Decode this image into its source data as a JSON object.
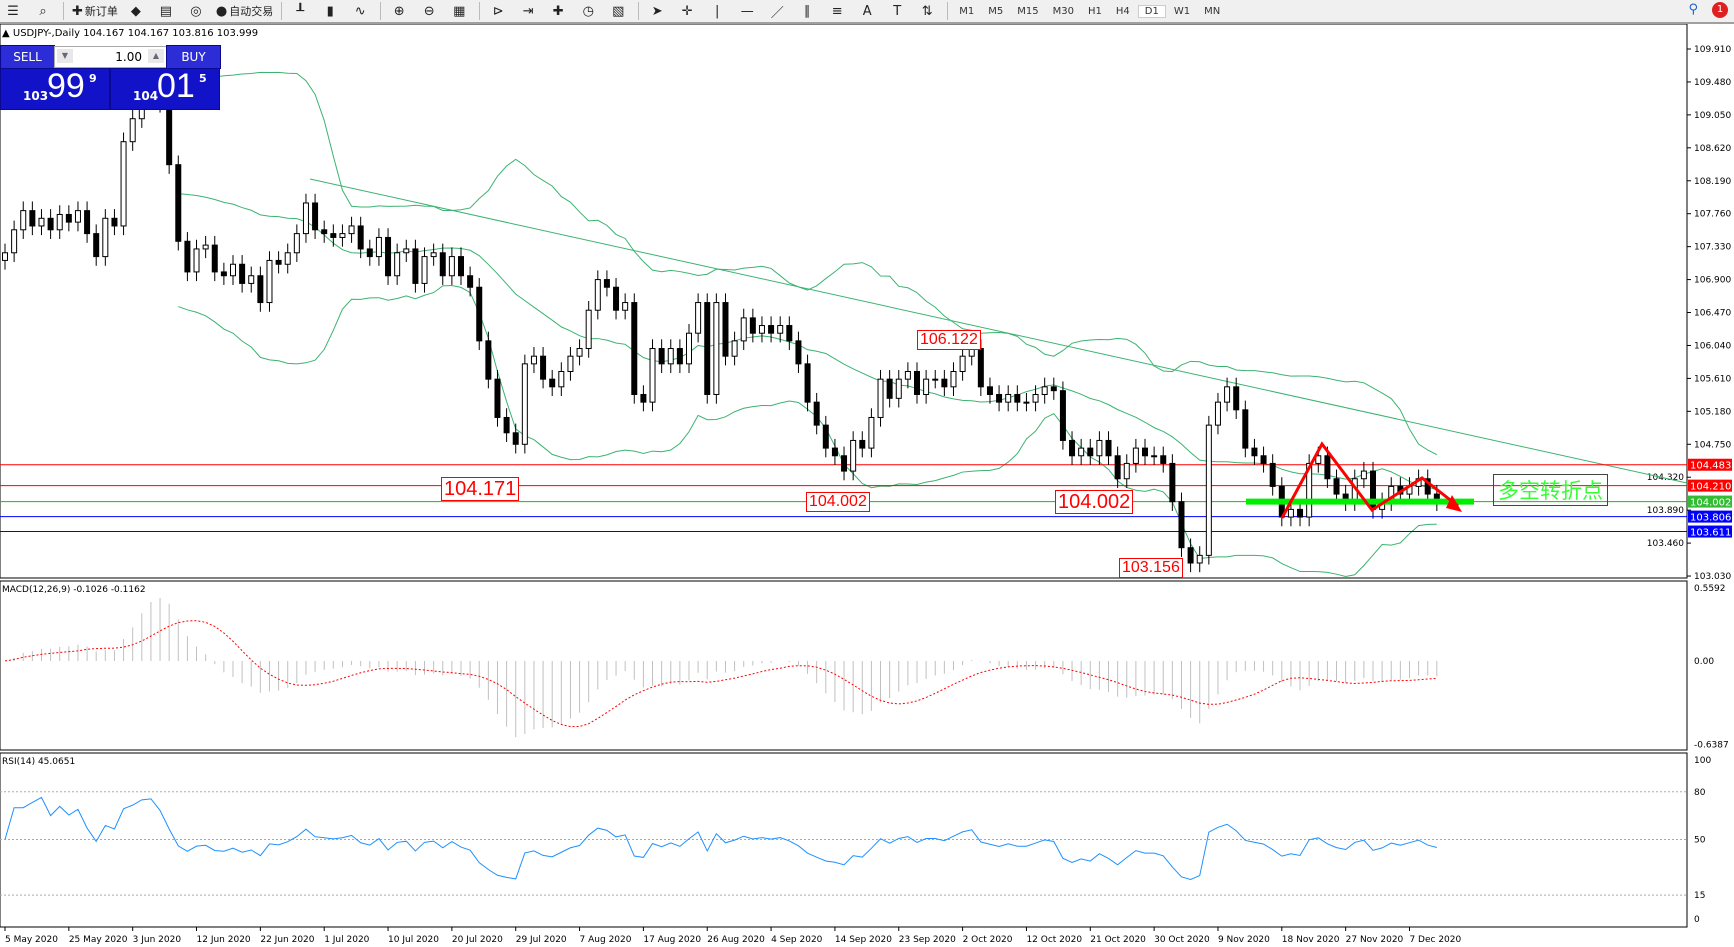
{
  "toolbar": {
    "items": [
      {
        "icon": "list-icon",
        "label": ""
      },
      {
        "icon": "zoom-chart-icon",
        "label": ""
      },
      {
        "icon": "new-order-icon",
        "label": "新订单"
      },
      {
        "icon": "market-watch-icon",
        "label": ""
      },
      {
        "icon": "navigator-icon",
        "label": ""
      },
      {
        "icon": "signal-icon",
        "label": ""
      },
      {
        "icon": "auto-trading-icon",
        "label": "自动交易"
      },
      {
        "icon": "bar-chart-icon",
        "label": ""
      },
      {
        "icon": "candlestick-icon",
        "label": ""
      },
      {
        "icon": "line-chart-icon",
        "label": ""
      },
      {
        "icon": "zoom-in-icon",
        "label": ""
      },
      {
        "icon": "zoom-out-icon",
        "label": ""
      },
      {
        "icon": "tile-windows-icon",
        "label": ""
      },
      {
        "icon": "chart-shift-icon",
        "label": ""
      },
      {
        "icon": "autoscroll-icon",
        "label": ""
      },
      {
        "icon": "indicators-icon",
        "label": ""
      },
      {
        "icon": "periods-icon",
        "label": ""
      },
      {
        "icon": "templates-icon",
        "label": ""
      },
      {
        "icon": "cursor-icon",
        "label": ""
      },
      {
        "icon": "crosshair-icon",
        "label": ""
      },
      {
        "icon": "vertical-line-icon",
        "label": ""
      },
      {
        "icon": "horizontal-line-icon",
        "label": ""
      },
      {
        "icon": "trendline-icon",
        "label": ""
      },
      {
        "icon": "equidistant-channel-icon",
        "label": ""
      },
      {
        "icon": "fibonacci-icon",
        "label": ""
      },
      {
        "icon": "text-icon",
        "label": "A"
      },
      {
        "icon": "text-label-icon",
        "label": "T"
      },
      {
        "icon": "arrows-icon",
        "label": ""
      }
    ],
    "timeframes": [
      "M1",
      "M5",
      "M15",
      "M30",
      "H1",
      "H4",
      "D1",
      "W1",
      "MN"
    ],
    "active_timeframe": "D1",
    "notifications": "1"
  },
  "chart": {
    "title": "USDJPY-,Daily  104.167 104.167 103.816 103.999",
    "trade": {
      "sell_label": "SELL",
      "buy_label": "BUY",
      "lot": "1.00",
      "sell_small": "103",
      "sell_big": "99",
      "sell_pip": "9",
      "buy_small": "104",
      "buy_big": "01",
      "buy_pip": "5"
    },
    "annotations": [
      "106.122",
      "104.171",
      "104.002",
      "104.002",
      "103.156"
    ],
    "note": "多空转折点"
  },
  "colors": {
    "up": "#ffffff",
    "down": "#000000",
    "bands": "#3cb371",
    "trend": "#3cb371",
    "red": "#ff0000",
    "green": "#00ee00",
    "blue": "#0000ff",
    "rsi": "#1e90ff",
    "macd_hist": "#c0c0c0",
    "signal": "#ff0000"
  },
  "chart_data": {
    "type": "candlestick",
    "symbol": "USDJPY-",
    "period": "Daily",
    "price_ticks": [
      "109.910",
      "109.480",
      "109.050",
      "108.620",
      "108.190",
      "107.760",
      "107.330",
      "106.900",
      "106.470",
      "106.040",
      "105.610",
      "105.180",
      "104.750",
      "104.320",
      "103.890",
      "103.460",
      "103.030"
    ],
    "ylim": [
      103.03,
      109.91
    ],
    "closes": [
      107.25,
      107.55,
      107.8,
      107.6,
      107.7,
      107.55,
      107.75,
      107.65,
      107.8,
      107.5,
      107.2,
      107.7,
      107.6,
      108.7,
      109.0,
      109.5,
      109.6,
      109.2,
      108.4,
      107.4,
      107.0,
      107.3,
      107.35,
      107.0,
      106.95,
      107.1,
      106.85,
      106.95,
      106.6,
      107.15,
      107.1,
      107.25,
      107.5,
      107.9,
      107.55,
      107.5,
      107.45,
      107.5,
      107.6,
      107.3,
      107.2,
      107.45,
      106.95,
      107.25,
      107.3,
      106.85,
      107.2,
      107.25,
      106.95,
      107.2,
      106.95,
      106.8,
      106.1,
      105.6,
      105.1,
      104.9,
      104.75,
      105.8,
      105.9,
      105.6,
      105.5,
      105.7,
      105.9,
      106.0,
      106.5,
      106.9,
      106.8,
      106.5,
      106.6,
      105.4,
      105.3,
      106.0,
      105.8,
      106.0,
      105.8,
      106.2,
      106.6,
      105.4,
      106.6,
      105.9,
      106.1,
      106.4,
      106.2,
      106.3,
      106.2,
      106.3,
      106.1,
      105.8,
      105.3,
      105.0,
      104.7,
      104.6,
      104.4,
      104.8,
      104.7,
      105.1,
      105.6,
      105.35,
      105.6,
      105.7,
      105.4,
      105.6,
      105.6,
      105.5,
      105.7,
      105.9,
      106.0,
      105.5,
      105.4,
      105.3,
      105.4,
      105.3,
      105.3,
      105.4,
      105.5,
      105.45,
      104.8,
      104.6,
      104.7,
      104.6,
      104.8,
      104.6,
      104.3,
      104.5,
      104.7,
      104.6,
      104.6,
      104.5,
      104.0,
      103.4,
      103.2,
      103.3,
      105.0,
      105.3,
      105.5,
      105.2,
      104.7,
      104.6,
      104.5,
      104.2,
      103.8,
      103.9,
      103.8,
      104.5,
      104.6,
      104.3,
      104.1,
      104.0,
      104.3,
      104.4,
      103.9,
      104.0,
      104.2,
      104.1,
      104.2,
      104.3,
      104.1,
      103.999
    ],
    "date_labels": [
      "5 May 2020",
      "25 May 2020",
      "3 Jun 2020",
      "12 Jun 2020",
      "22 Jun 2020",
      "1 Jul 2020",
      "10 Jul 2020",
      "20 Jul 2020",
      "29 Jul 2020",
      "7 Aug 2020",
      "17 Aug 2020",
      "26 Aug 2020",
      "4 Sep 2020",
      "14 Sep 2020",
      "23 Sep 2020",
      "2 Oct 2020",
      "12 Oct 2020",
      "21 Oct 2020",
      "30 Oct 2020",
      "9 Nov 2020",
      "18 Nov 2020",
      "27 Nov 2020",
      "7 Dec 2020"
    ],
    "hlines": [
      {
        "price": 104.483,
        "color": "#ff0000"
      },
      {
        "price": 104.21,
        "color": "#ff0000"
      },
      {
        "price": 104.002,
        "color": "#00cc00"
      },
      {
        "price": 103.806,
        "color": "#0000ff"
      },
      {
        "price": 103.611,
        "color": "#0000ff"
      }
    ],
    "hline_labels": [
      "104.483",
      "104.210",
      "104.002",
      "103.806",
      "103.611"
    ],
    "bollinger": {
      "period": 20,
      "deviation": 2
    },
    "macd": {
      "label": "MACD(12,26,9) -0.1026 -0.1162",
      "ticks": [
        "0.5592",
        "0.00",
        "-0.6387"
      ],
      "ylim": [
        -0.6387,
        0.5592
      ]
    },
    "rsi": {
      "label": "RSI(14) 45.0651",
      "ticks": [
        "100",
        "80",
        "50",
        "15",
        "0"
      ],
      "levels": [
        80,
        50,
        15
      ]
    }
  }
}
